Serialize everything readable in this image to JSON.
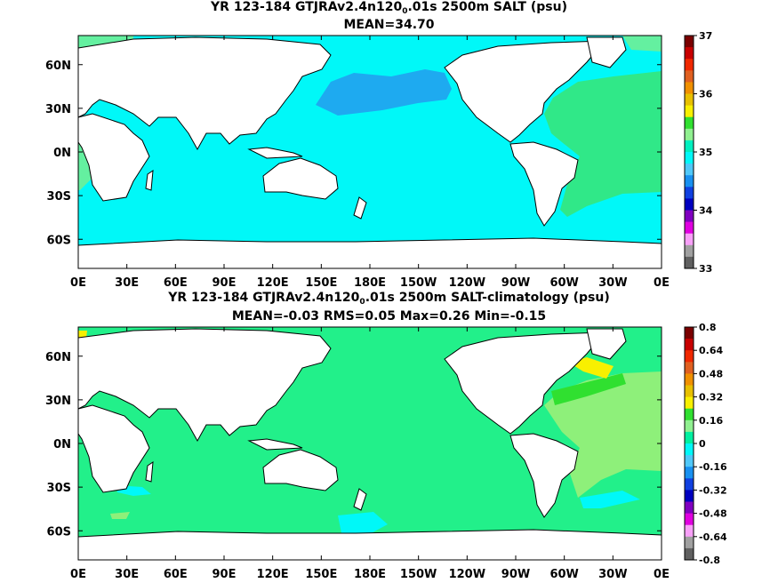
{
  "panels": [
    {
      "title_parts": [
        "YR 123-184 GTJRAv2.4n120",
        "0",
        ".01s 2500m SALT (psu)"
      ],
      "subtitle": "MEAN=34.70",
      "colorbar": {
        "labels": [
          "37",
          "36",
          "35",
          "34",
          "33"
        ],
        "colors": [
          "#7a0000",
          "#c80000",
          "#f02800",
          "#e06020",
          "#f09000",
          "#e8c000",
          "#f8f000",
          "#30e030",
          "#90f090",
          "#00f0c0",
          "#00f8f8",
          "#50c8f8",
          "#1890f0",
          "#1040e0",
          "#0000c0",
          "#8000c0",
          "#e000e0",
          "#f8a0f8",
          "#a0a0a0",
          "#606060"
        ]
      },
      "fill": {
        "ocean": "#00f8f8",
        "pacific_north": "#1eaaf0",
        "atlantic": "#30e888",
        "atlantic_light": "#64f0a0"
      }
    },
    {
      "title_parts": [
        "YR 123-184 GTJRAv2.4n120",
        "0",
        ".01s 2500m SALT-climatology (psu)"
      ],
      "subtitle": "MEAN=-0.03   RMS=0.05   Max=0.26   Min=-0.15",
      "colorbar": {
        "labels": [
          "0.8",
          "0.64",
          "0.48",
          "0.32",
          "0.16",
          "0",
          "-0.16",
          "-0.32",
          "-0.48",
          "-0.64",
          "-0.8"
        ],
        "colors": [
          "#7a0000",
          "#c80000",
          "#f02800",
          "#e06020",
          "#f09000",
          "#e8c000",
          "#f8f000",
          "#30e030",
          "#90f090",
          "#00f0a0",
          "#00f8f8",
          "#50c8f8",
          "#1890f0",
          "#1040e0",
          "#0000c0",
          "#8000c0",
          "#e000e0",
          "#f8a0f8",
          "#a0a0a0",
          "#606060"
        ]
      },
      "fill": {
        "ocean": "#22f08a",
        "atlantic": "#8ef07a",
        "atlantic_light": "#30e030",
        "cyan_patch": "#00f8f8",
        "yellow": "#f8f000"
      }
    }
  ],
  "axes": {
    "lon_labels": [
      "0E",
      "30E",
      "60E",
      "90E",
      "120E",
      "150E",
      "180E",
      "150W",
      "120W",
      "90W",
      "60W",
      "30W",
      "0E"
    ],
    "lat_labels": [
      "60N",
      "30N",
      "0N",
      "30S",
      "60S"
    ]
  },
  "colors": {
    "land": "#ffffff",
    "coast": "#000000"
  }
}
